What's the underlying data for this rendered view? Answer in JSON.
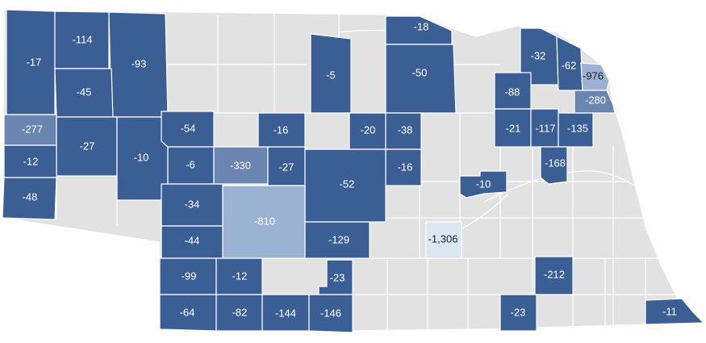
{
  "map": {
    "colors": {
      "dark": "#3b5f94",
      "medium": "#6a86b0",
      "light": "#9bb2d2",
      "lightest": "#dbe6f3",
      "grey": "#e2e2e2",
      "text_light": "#ffffff",
      "text_dark": "#222222"
    },
    "counties": [
      {
        "id": "c1",
        "value": "-17",
        "shade": "dark"
      },
      {
        "id": "c2",
        "value": "-114",
        "shade": "dark"
      },
      {
        "id": "c3",
        "value": "-93",
        "shade": "dark"
      },
      {
        "id": "c4",
        "value": "-45",
        "shade": "dark"
      },
      {
        "id": "c5",
        "value": "-5",
        "shade": "dark"
      },
      {
        "id": "c6",
        "value": "-18",
        "shade": "dark"
      },
      {
        "id": "c7",
        "value": "-50",
        "shade": "dark"
      },
      {
        "id": "c8",
        "value": "-32",
        "shade": "dark"
      },
      {
        "id": "c9",
        "value": "-62",
        "shade": "dark"
      },
      {
        "id": "c10",
        "value": "-976",
        "shade": "light"
      },
      {
        "id": "c11",
        "value": "-88",
        "shade": "dark"
      },
      {
        "id": "c12",
        "value": "-280",
        "shade": "medium"
      },
      {
        "id": "c13",
        "value": "-277",
        "shade": "medium"
      },
      {
        "id": "c14",
        "value": "-27",
        "shade": "dark"
      },
      {
        "id": "c15",
        "value": "-12",
        "shade": "dark"
      },
      {
        "id": "c16",
        "value": "-48",
        "shade": "dark"
      },
      {
        "id": "c17",
        "value": "-10",
        "shade": "dark"
      },
      {
        "id": "c18",
        "value": "-54",
        "shade": "dark"
      },
      {
        "id": "c19",
        "value": "-6",
        "shade": "dark"
      },
      {
        "id": "c20",
        "value": "-330",
        "shade": "medium"
      },
      {
        "id": "c21",
        "value": "-27",
        "shade": "dark"
      },
      {
        "id": "c22",
        "value": "-16",
        "shade": "dark"
      },
      {
        "id": "c23",
        "value": "-20",
        "shade": "dark"
      },
      {
        "id": "c24",
        "value": "-38",
        "shade": "dark"
      },
      {
        "id": "c25",
        "value": "-16",
        "shade": "dark"
      },
      {
        "id": "c26",
        "value": "-52",
        "shade": "dark"
      },
      {
        "id": "c27",
        "value": "-21",
        "shade": "dark"
      },
      {
        "id": "c28",
        "value": "-117",
        "shade": "dark"
      },
      {
        "id": "c29",
        "value": "-135",
        "shade": "dark"
      },
      {
        "id": "c30",
        "value": "-168",
        "shade": "dark"
      },
      {
        "id": "c31",
        "value": "-10",
        "shade": "dark"
      },
      {
        "id": "c32",
        "value": "-34",
        "shade": "dark"
      },
      {
        "id": "c33",
        "value": "-810",
        "shade": "light"
      },
      {
        "id": "c34",
        "value": "-44",
        "shade": "dark"
      },
      {
        "id": "c35",
        "value": "-129",
        "shade": "dark"
      },
      {
        "id": "c36",
        "value": "-1,306",
        "shade": "lightest"
      },
      {
        "id": "c37",
        "value": "-99",
        "shade": "dark"
      },
      {
        "id": "c38",
        "value": "-12",
        "shade": "dark"
      },
      {
        "id": "c39",
        "value": "-23",
        "shade": "dark"
      },
      {
        "id": "c40",
        "value": "-212",
        "shade": "dark"
      },
      {
        "id": "c41",
        "value": "-64",
        "shade": "dark"
      },
      {
        "id": "c42",
        "value": "-82",
        "shade": "dark"
      },
      {
        "id": "c43",
        "value": "-144",
        "shade": "dark"
      },
      {
        "id": "c44",
        "value": "-146",
        "shade": "dark"
      },
      {
        "id": "c45",
        "value": "-23",
        "shade": "dark"
      },
      {
        "id": "c46",
        "value": "-11",
        "shade": "dark"
      }
    ]
  }
}
